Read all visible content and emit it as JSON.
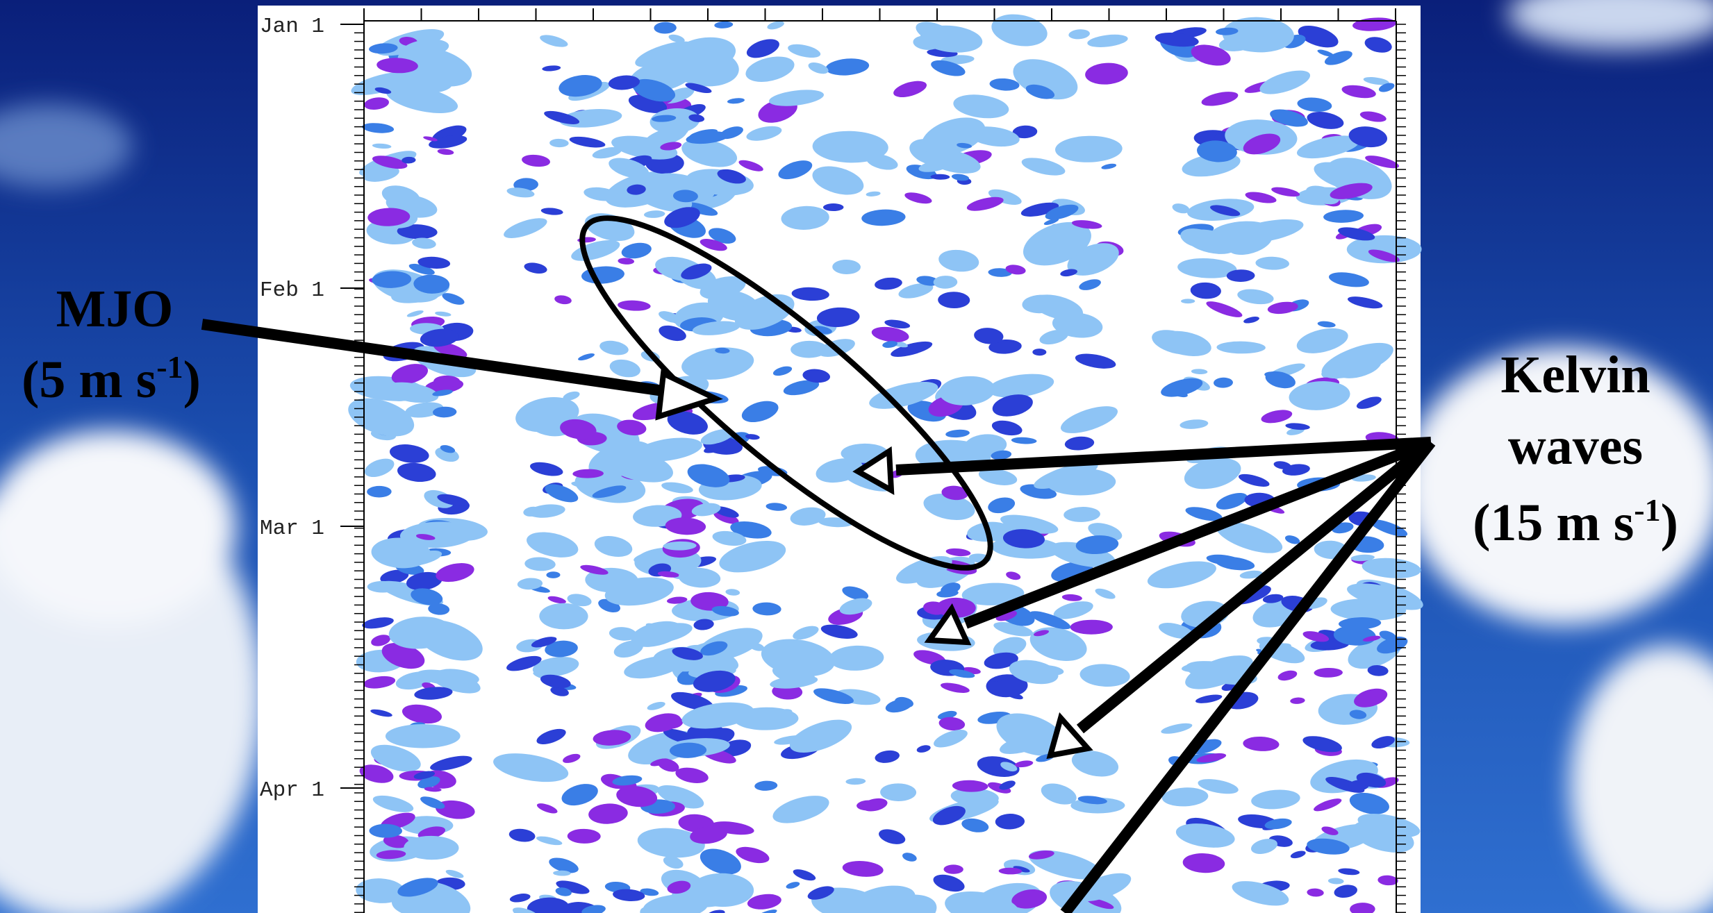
{
  "axis": {
    "y_tick_labels": [
      "Jan 1",
      "Feb 1",
      "Mar 1",
      "Apr 1"
    ]
  },
  "annotations": {
    "mjo": {
      "title": "MJO",
      "speed": "(5 m s",
      "speed_exponent": "-1",
      "speed_close": ")"
    },
    "kelvin": {
      "title": "Kelvin",
      "subtitle": "waves",
      "speed": "(15 m s",
      "speed_exponent": "-1",
      "speed_close": ")"
    }
  }
}
